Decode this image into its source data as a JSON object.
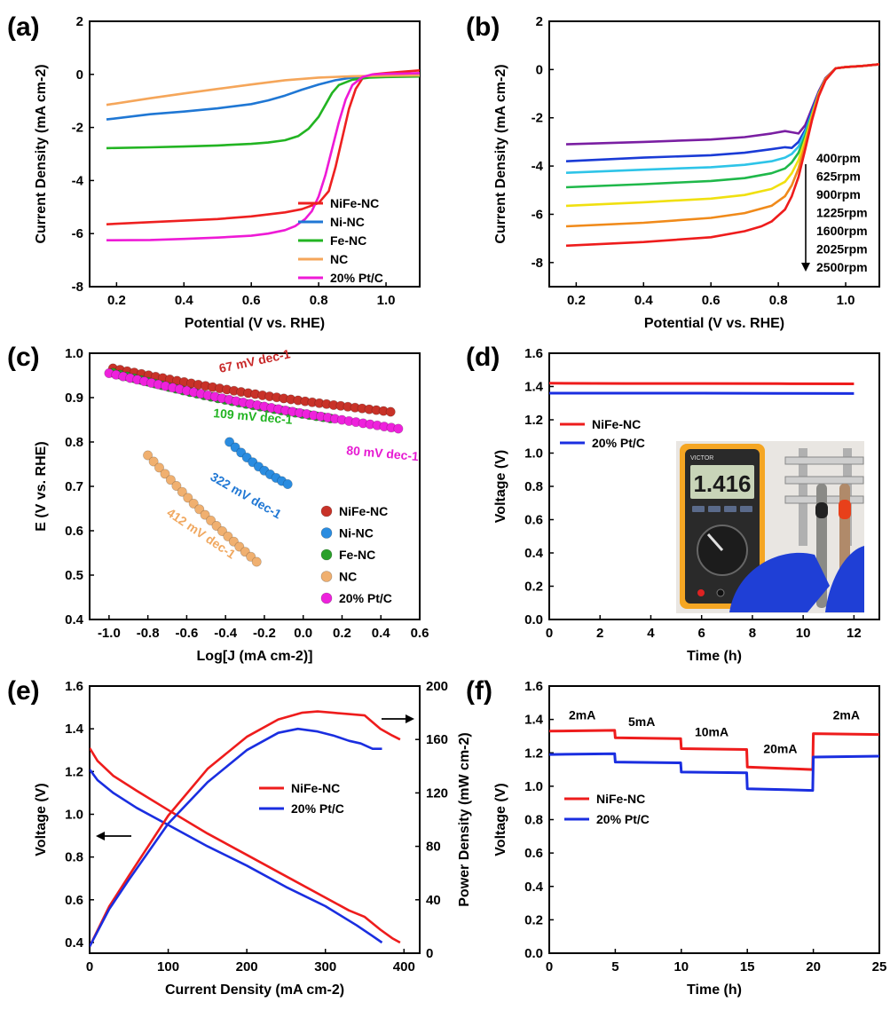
{
  "chart_data": [
    {
      "id": "a",
      "panel_label": "(a)",
      "type": "line",
      "xlabel": "Potential (V vs. RHE)",
      "ylabel": "Current Density (mA cm-2)",
      "xlim": [
        0.12,
        1.1
      ],
      "ylim": [
        -8,
        2
      ],
      "xticks": [
        0.2,
        0.4,
        0.6,
        0.8,
        1.0
      ],
      "yticks": [
        -8,
        -6,
        -4,
        -2,
        0,
        2
      ],
      "legend_position": "bottom-right",
      "series": [
        {
          "name": "NiFe-NC",
          "color": "#ee2020",
          "x": [
            0.17,
            0.3,
            0.5,
            0.6,
            0.7,
            0.75,
            0.8,
            0.83,
            0.85,
            0.87,
            0.89,
            0.91,
            0.93,
            0.96,
            1.0,
            1.05,
            1.1
          ],
          "y": [
            -5.65,
            -5.57,
            -5.45,
            -5.35,
            -5.2,
            -5.08,
            -4.85,
            -4.4,
            -3.5,
            -2.4,
            -1.3,
            -0.55,
            -0.15,
            0.0,
            0.05,
            0.1,
            0.15
          ]
        },
        {
          "name": "Ni-NC",
          "color": "#1f77d4",
          "x": [
            0.17,
            0.3,
            0.4,
            0.5,
            0.6,
            0.65,
            0.7,
            0.75,
            0.8,
            0.85,
            0.9,
            0.95,
            1.0,
            1.1
          ],
          "y": [
            -1.7,
            -1.5,
            -1.4,
            -1.28,
            -1.12,
            -0.98,
            -0.8,
            -0.58,
            -0.38,
            -0.22,
            -0.12,
            -0.08,
            -0.05,
            -0.03
          ]
        },
        {
          "name": "Fe-NC",
          "color": "#22b422",
          "x": [
            0.17,
            0.3,
            0.4,
            0.5,
            0.6,
            0.65,
            0.7,
            0.74,
            0.77,
            0.8,
            0.82,
            0.84,
            0.86,
            0.9,
            0.95,
            1.0,
            1.1
          ],
          "y": [
            -2.78,
            -2.75,
            -2.72,
            -2.68,
            -2.62,
            -2.57,
            -2.48,
            -2.32,
            -2.05,
            -1.6,
            -1.15,
            -0.7,
            -0.4,
            -0.2,
            -0.12,
            -0.1,
            -0.08
          ]
        },
        {
          "name": "NC",
          "color": "#f5a65a",
          "x": [
            0.17,
            0.3,
            0.4,
            0.5,
            0.6,
            0.7,
            0.8,
            0.9,
            1.0,
            1.1
          ],
          "y": [
            -1.15,
            -0.9,
            -0.72,
            -0.55,
            -0.38,
            -0.22,
            -0.12,
            -0.07,
            -0.05,
            -0.04
          ]
        },
        {
          "name": "20% Pt/C",
          "color": "#ee1ad6",
          "x": [
            0.17,
            0.3,
            0.4,
            0.5,
            0.6,
            0.65,
            0.7,
            0.73,
            0.76,
            0.78,
            0.8,
            0.82,
            0.84,
            0.86,
            0.88,
            0.9,
            0.93,
            0.96,
            1.0,
            1.05,
            1.1
          ],
          "y": [
            -6.25,
            -6.24,
            -6.2,
            -6.15,
            -6.08,
            -6.0,
            -5.87,
            -5.72,
            -5.45,
            -5.15,
            -4.6,
            -3.8,
            -2.8,
            -1.8,
            -0.95,
            -0.4,
            -0.1,
            0.0,
            0.02,
            0.03,
            0.05
          ]
        }
      ]
    },
    {
      "id": "b",
      "panel_label": "(b)",
      "type": "line",
      "xlabel": "Potential (V vs. RHE)",
      "ylabel": "Current Density (mA cm-2)",
      "xlim": [
        0.12,
        1.1
      ],
      "ylim": [
        -9,
        2
      ],
      "xticks": [
        0.2,
        0.4,
        0.6,
        0.8,
        1.0
      ],
      "yticks": [
        -8,
        -6,
        -4,
        -2,
        0,
        2
      ],
      "annotation_labels": [
        "400rpm",
        "625rpm",
        "900rpm",
        "1225rpm",
        "1600rpm",
        "2025rpm",
        "2500rpm"
      ],
      "series": [
        {
          "name": "400rpm",
          "color": "#7a1fa2",
          "x": [
            0.17,
            0.4,
            0.6,
            0.7,
            0.78,
            0.82,
            0.84,
            0.86,
            0.88,
            0.9,
            0.92,
            0.94,
            0.97,
            1.0,
            1.05,
            1.1
          ],
          "y": [
            -3.1,
            -3.0,
            -2.9,
            -2.8,
            -2.65,
            -2.55,
            -2.6,
            -2.65,
            -2.3,
            -1.6,
            -0.9,
            -0.35,
            0.05,
            0.1,
            0.15,
            0.22
          ]
        },
        {
          "name": "625rpm",
          "color": "#1a3bd6",
          "x": [
            0.17,
            0.4,
            0.6,
            0.7,
            0.78,
            0.82,
            0.84,
            0.86,
            0.88,
            0.9,
            0.92,
            0.94,
            0.97,
            1.0,
            1.05,
            1.1
          ],
          "y": [
            -3.8,
            -3.65,
            -3.55,
            -3.45,
            -3.3,
            -3.22,
            -3.25,
            -3.0,
            -2.5,
            -1.7,
            -0.95,
            -0.4,
            0.05,
            0.1,
            0.15,
            0.22
          ]
        },
        {
          "name": "900rpm",
          "color": "#2ec4e8",
          "x": [
            0.17,
            0.4,
            0.6,
            0.7,
            0.78,
            0.82,
            0.84,
            0.86,
            0.88,
            0.9,
            0.92,
            0.94,
            0.97,
            1.0,
            1.05,
            1.1
          ],
          "y": [
            -4.28,
            -4.15,
            -4.05,
            -3.95,
            -3.8,
            -3.65,
            -3.5,
            -3.2,
            -2.6,
            -1.8,
            -1.0,
            -0.4,
            0.05,
            0.1,
            0.15,
            0.22
          ]
        },
        {
          "name": "1225rpm",
          "color": "#1fb84a",
          "x": [
            0.17,
            0.4,
            0.6,
            0.7,
            0.78,
            0.82,
            0.84,
            0.86,
            0.88,
            0.9,
            0.92,
            0.94,
            0.97,
            1.0,
            1.05,
            1.1
          ],
          "y": [
            -4.88,
            -4.75,
            -4.62,
            -4.5,
            -4.3,
            -4.1,
            -3.85,
            -3.45,
            -2.75,
            -1.85,
            -1.0,
            -0.4,
            0.05,
            0.1,
            0.15,
            0.22
          ]
        },
        {
          "name": "1600rpm",
          "color": "#f0e010",
          "x": [
            0.17,
            0.4,
            0.6,
            0.7,
            0.78,
            0.82,
            0.84,
            0.86,
            0.88,
            0.9,
            0.92,
            0.94,
            0.97,
            1.0,
            1.05,
            1.1
          ],
          "y": [
            -5.65,
            -5.5,
            -5.35,
            -5.2,
            -4.95,
            -4.65,
            -4.3,
            -3.75,
            -2.9,
            -1.9,
            -1.0,
            -0.4,
            0.05,
            0.1,
            0.15,
            0.22
          ]
        },
        {
          "name": "2025rpm",
          "color": "#f08a1a",
          "x": [
            0.17,
            0.4,
            0.6,
            0.7,
            0.78,
            0.82,
            0.84,
            0.86,
            0.88,
            0.9,
            0.92,
            0.94,
            0.97,
            1.0,
            1.05,
            1.1
          ],
          "y": [
            -6.5,
            -6.35,
            -6.15,
            -5.95,
            -5.65,
            -5.25,
            -4.8,
            -4.1,
            -3.1,
            -2.0,
            -1.05,
            -0.4,
            0.05,
            0.1,
            0.15,
            0.22
          ]
        },
        {
          "name": "2500rpm",
          "color": "#ee1c1c",
          "x": [
            0.17,
            0.4,
            0.6,
            0.7,
            0.75,
            0.78,
            0.82,
            0.84,
            0.86,
            0.88,
            0.9,
            0.92,
            0.94,
            0.97,
            1.0,
            1.05,
            1.1
          ],
          "y": [
            -7.3,
            -7.15,
            -6.95,
            -6.7,
            -6.5,
            -6.3,
            -5.8,
            -5.25,
            -4.45,
            -3.3,
            -2.1,
            -1.1,
            -0.45,
            0.05,
            0.1,
            0.15,
            0.22
          ]
        }
      ]
    },
    {
      "id": "c",
      "panel_label": "(c)",
      "type": "scatter",
      "xlabel": "Log[J (mA cm-2)]",
      "ylabel": "E (V vs. RHE)",
      "xlim": [
        -1.1,
        0.6
      ],
      "ylim": [
        0.4,
        1.0
      ],
      "xticks": [
        -1.0,
        -0.8,
        -0.6,
        -0.4,
        -0.2,
        0.0,
        0.2,
        0.4,
        0.6
      ],
      "yticks": [
        0.4,
        0.5,
        0.6,
        0.7,
        0.8,
        0.9,
        1.0
      ],
      "legend_position": "bottom-right",
      "annotations": [
        {
          "text": "67 mV dec-1",
          "color": "#c82828"
        },
        {
          "text": "109 mV dec-1",
          "color": "#22b422"
        },
        {
          "text": "80 mV dec-1",
          "color": "#e61ad2"
        },
        {
          "text": "322 mV dec-1",
          "color": "#1f77d4"
        },
        {
          "text": "412 mV dec-1",
          "color": "#f0a860"
        }
      ],
      "series": [
        {
          "name": "NiFe-NC",
          "color": "#c83228",
          "x_start": -0.98,
          "x_end": 0.45,
          "y_start": 0.966,
          "y_end": 0.868,
          "count": 40
        },
        {
          "name": "Ni-NC",
          "color": "#2a8ce0",
          "x_start": -0.38,
          "x_end": -0.08,
          "y_start": 0.8,
          "y_end": 0.705,
          "count": 11
        },
        {
          "name": "Fe-NC",
          "color": "#2aa02a",
          "x_start": -0.98,
          "x_end": 0.14,
          "y_start": 0.956,
          "y_end": 0.853,
          "count": 32
        },
        {
          "name": "NC",
          "color": "#f0b070",
          "x_start": -0.8,
          "x_end": -0.24,
          "y_start": 0.77,
          "y_end": 0.53,
          "count": 20
        },
        {
          "name": "20% Pt/C",
          "color": "#ee22dc",
          "x_start": -1.0,
          "x_end": 0.49,
          "y_start": 0.955,
          "y_end": 0.83,
          "count": 42
        }
      ]
    },
    {
      "id": "d",
      "panel_label": "(d)",
      "type": "line",
      "xlabel": "Time (h)",
      "ylabel": "Voltage (V)",
      "xlim": [
        0,
        13
      ],
      "ylim": [
        0.0,
        1.6
      ],
      "xticks": [
        0,
        2,
        4,
        6,
        8,
        10,
        12
      ],
      "yticks": [
        0.0,
        0.2,
        0.4,
        0.6,
        0.8,
        1.0,
        1.2,
        1.4,
        1.6
      ],
      "legend_position": "upper-left",
      "inset_photo": {
        "display_reading": "1.416",
        "brand_text": "VICTOR"
      },
      "series": [
        {
          "name": "NiFe-NC",
          "color": "#ee1c1c",
          "x": [
            0,
            3,
            6,
            9,
            12
          ],
          "y": [
            1.42,
            1.418,
            1.418,
            1.417,
            1.416
          ]
        },
        {
          "name": "20% Pt/C",
          "color": "#1a2ee0",
          "x": [
            0,
            3,
            6,
            9,
            12
          ],
          "y": [
            1.36,
            1.36,
            1.36,
            1.359,
            1.358
          ]
        }
      ]
    },
    {
      "id": "e",
      "panel_label": "(e)",
      "type": "line",
      "xlabel": "Current Density (mA cm-2)",
      "ylabel": "Voltage (V)",
      "y2label": "Power Density (mW cm-2)",
      "xlim": [
        0,
        420
      ],
      "ylim": [
        0.35,
        1.6
      ],
      "y2lim": [
        0,
        200
      ],
      "xticks": [
        0,
        100,
        200,
        300,
        400
      ],
      "yticks": [
        0.4,
        0.6,
        0.8,
        1.0,
        1.2,
        1.4,
        1.6
      ],
      "y2ticks": [
        0,
        40,
        80,
        120,
        160,
        200
      ],
      "legend_position": "center",
      "series": [
        {
          "name": "NiFe-NC",
          "axis": "left",
          "color": "#ee1c1c",
          "x": [
            0,
            10,
            30,
            60,
            100,
            150,
            200,
            250,
            300,
            330,
            350,
            370,
            385,
            395
          ],
          "y": [
            1.31,
            1.25,
            1.18,
            1.11,
            1.02,
            0.91,
            0.81,
            0.71,
            0.61,
            0.55,
            0.52,
            0.46,
            0.42,
            0.4
          ]
        },
        {
          "name": "20% Pt/C",
          "axis": "left",
          "color": "#1a2ee0",
          "x": [
            0,
            10,
            30,
            60,
            100,
            150,
            200,
            250,
            300,
            340,
            360,
            372
          ],
          "y": [
            1.21,
            1.16,
            1.1,
            1.03,
            0.95,
            0.85,
            0.76,
            0.66,
            0.57,
            0.48,
            0.43,
            0.4
          ]
        },
        {
          "name": "NiFe-NC power",
          "axis": "right",
          "color": "#ee1c1c",
          "x": [
            0,
            25,
            50,
            100,
            150,
            200,
            240,
            270,
            290,
            310,
            330,
            350,
            370,
            385,
            395
          ],
          "y": [
            5,
            35,
            58,
            103,
            138,
            162,
            175,
            180,
            181,
            180,
            179,
            178,
            168,
            163,
            160
          ]
        },
        {
          "name": "20% Pt/C power",
          "axis": "right",
          "color": "#1a2ee0",
          "x": [
            0,
            25,
            50,
            100,
            150,
            200,
            240,
            265,
            290,
            310,
            330,
            345,
            360,
            372
          ],
          "y": [
            5,
            33,
            55,
            97,
            128,
            152,
            165,
            168,
            166,
            163,
            159,
            157,
            153,
            153
          ]
        }
      ],
      "arrows": [
        {
          "direction": "left",
          "points_to": "left axis"
        },
        {
          "direction": "right",
          "points_to": "right axis"
        }
      ]
    },
    {
      "id": "f",
      "panel_label": "(f)",
      "type": "line",
      "xlabel": "Time (h)",
      "ylabel": "Voltage (V)",
      "xlim": [
        0,
        25
      ],
      "ylim": [
        0.0,
        1.6
      ],
      "xticks": [
        0,
        5,
        10,
        15,
        20,
        25
      ],
      "yticks": [
        0.0,
        0.2,
        0.4,
        0.6,
        0.8,
        1.0,
        1.2,
        1.4,
        1.6
      ],
      "legend_position": "center-left",
      "segment_labels": [
        "2mA",
        "5mA",
        "10mA",
        "20mA",
        "2mA"
      ],
      "series": [
        {
          "name": "NiFe-NC",
          "color": "#ee1c1c",
          "x": [
            0,
            4.95,
            5.0,
            9.95,
            10.0,
            14.95,
            15.0,
            19.95,
            20.0,
            25
          ],
          "y": [
            1.33,
            1.335,
            1.29,
            1.285,
            1.225,
            1.22,
            1.115,
            1.1,
            1.315,
            1.31
          ]
        },
        {
          "name": "20% Pt/C",
          "color": "#1a2ee0",
          "x": [
            0,
            4.95,
            5.0,
            9.95,
            10.0,
            14.95,
            15.0,
            19.95,
            20.0,
            25
          ],
          "y": [
            1.19,
            1.195,
            1.145,
            1.14,
            1.085,
            1.08,
            0.985,
            0.975,
            1.175,
            1.18
          ]
        }
      ]
    }
  ]
}
